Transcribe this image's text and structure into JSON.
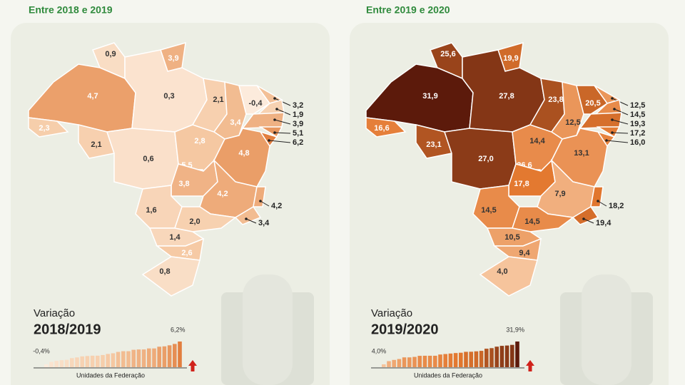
{
  "panels": [
    {
      "title": "Entre 2018 e 2019",
      "colors": [
        "#fcebdc",
        "#f5c7a0",
        "#e27f3f"
      ],
      "states": [
        {
          "value": 0.9,
          "label": "0,9"
        },
        {
          "value": 3.9,
          "label": "3,9"
        },
        {
          "value": 4.7,
          "label": "4,7"
        },
        {
          "value": 0.3,
          "label": "0,3"
        },
        {
          "value": 2.3,
          "label": "2,3"
        },
        {
          "value": 2.1,
          "label": "2,1"
        },
        {
          "value": 0.6,
          "label": "0,6"
        },
        {
          "value": 2.1,
          "label": "2,1"
        },
        {
          "value": 3.4,
          "label": "3,4"
        },
        {
          "value": -0.4,
          "label": "-0,4"
        },
        {
          "value": 3.2,
          "label": "3,2"
        },
        {
          "value": 1.9,
          "label": "1,9"
        },
        {
          "value": 3.9,
          "label": "3,9"
        },
        {
          "value": 5.1,
          "label": "5,1"
        },
        {
          "value": 6.2,
          "label": "6,2"
        },
        {
          "value": 2.8,
          "label": "2,8"
        },
        {
          "value": 4.8,
          "label": "4,8"
        },
        {
          "value": 5.5,
          "label": "5,5"
        },
        {
          "value": 3.8,
          "label": "3,8"
        },
        {
          "value": 4.2,
          "label": "4,2"
        },
        {
          "value": 4.2,
          "label": "4,2"
        },
        {
          "value": 3.4,
          "label": "3,4"
        },
        {
          "value": 1.6,
          "label": "1,6"
        },
        {
          "value": 2.0,
          "label": "2,0"
        },
        {
          "value": 1.4,
          "label": "1,4"
        },
        {
          "value": 2.6,
          "label": "2,6"
        },
        {
          "value": 0.8,
          "label": "0,8"
        }
      ],
      "legend": {
        "label": "Variação",
        "period": "2018/2019",
        "low_label": "-0,4%",
        "high_label": "6,2%",
        "axis_label": "Unidades da Federação",
        "bars": [
          -0.4,
          0.3,
          0.6,
          0.8,
          0.9,
          1.4,
          1.6,
          1.9,
          2.0,
          2.1,
          2.1,
          2.3,
          2.6,
          2.8,
          3.2,
          3.4,
          3.4,
          3.8,
          3.9,
          3.9,
          4.2,
          4.2,
          4.7,
          4.8,
          5.1,
          5.5,
          6.2
        ]
      }
    },
    {
      "title": "Entre 2019 e 2020",
      "colors": [
        "#f6c49c",
        "#e3782f",
        "#5c1a0b"
      ],
      "states": [
        {
          "value": 25.6,
          "label": "25,6"
        },
        {
          "value": 19.9,
          "label": "19,9"
        },
        {
          "value": 31.9,
          "label": "31,9"
        },
        {
          "value": 27.8,
          "label": "27,8"
        },
        {
          "value": 16.6,
          "label": "16,6"
        },
        {
          "value": 23.1,
          "label": "23,1"
        },
        {
          "value": 27.0,
          "label": "27,0"
        },
        {
          "value": 23.8,
          "label": "23,8"
        },
        {
          "value": 12.5,
          "label": "12,5"
        },
        {
          "value": 20.5,
          "label": "20,5"
        },
        {
          "value": 12.5,
          "label": "12,5"
        },
        {
          "value": 14.5,
          "label": "14,5"
        },
        {
          "value": 19.3,
          "label": "19,3"
        },
        {
          "value": 17.2,
          "label": "17,2"
        },
        {
          "value": 16.0,
          "label": "16,0"
        },
        {
          "value": 14.4,
          "label": "14,4"
        },
        {
          "value": 13.1,
          "label": "13,1"
        },
        {
          "value": 26.6,
          "label": "26,6"
        },
        {
          "value": 17.8,
          "label": "17,8"
        },
        {
          "value": 7.9,
          "label": "7,9"
        },
        {
          "value": 18.2,
          "label": "18,2"
        },
        {
          "value": 19.4,
          "label": "19,4"
        },
        {
          "value": 14.5,
          "label": "14,5"
        },
        {
          "value": 14.5,
          "label": "14,5"
        },
        {
          "value": 10.5,
          "label": "10,5"
        },
        {
          "value": 9.4,
          "label": "9,4"
        },
        {
          "value": 4.0,
          "label": "4,0"
        }
      ],
      "legend": {
        "label": "Variação",
        "period": "2019/2020",
        "low_label": "4,0%",
        "high_label": "31,9%",
        "axis_label": "Unidades da Federação",
        "bars": [
          4.0,
          7.9,
          9.4,
          10.5,
          12.5,
          12.5,
          13.1,
          14.4,
          14.5,
          14.5,
          14.5,
          16.0,
          16.6,
          17.2,
          17.8,
          18.2,
          19.3,
          19.4,
          19.9,
          20.5,
          23.1,
          23.8,
          25.6,
          26.6,
          27.0,
          27.8,
          31.9
        ]
      }
    }
  ]
}
